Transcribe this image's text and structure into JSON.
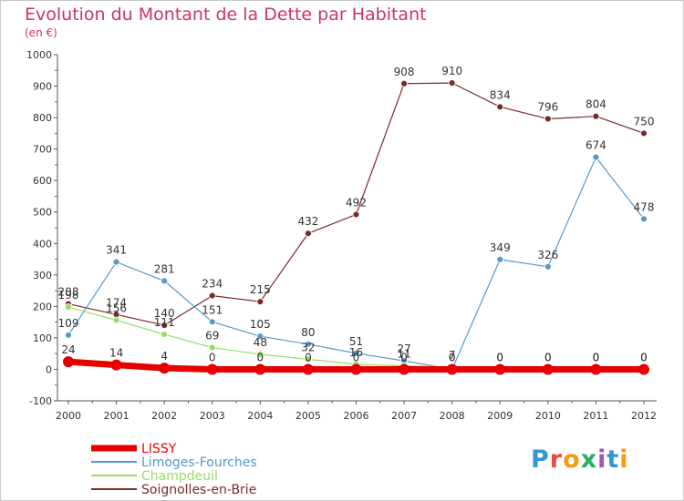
{
  "header": {
    "title": "Evolution du Montant de la Dette par Habitant",
    "subtitle": "(en €)"
  },
  "logo": {
    "text": "Proxiti",
    "colors": [
      "#3399cc",
      "#e84c3d",
      "#f39c12",
      "#27ae60",
      "#9b59b6",
      "#3399cc",
      "#f39c12"
    ]
  },
  "chart_data": {
    "type": "line",
    "title": "Evolution du Montant de la Dette par Habitant",
    "subtitle": "(en €)",
    "x": [
      "2000",
      "2001",
      "2002",
      "2003",
      "2004",
      "2005",
      "2006",
      "2007",
      "2008",
      "2009",
      "2010",
      "2011",
      "2012"
    ],
    "ylim": [
      -100,
      1000
    ],
    "yticks": [
      -100,
      0,
      100,
      200,
      300,
      400,
      500,
      600,
      700,
      800,
      900,
      1000
    ],
    "grid": false,
    "legend": "bottom-left",
    "series": [
      {
        "name": "LISSY",
        "color": "#e60000",
        "values": [
          24,
          14,
          4,
          0,
          0,
          0,
          0,
          0,
          0,
          0,
          0,
          0,
          0
        ],
        "labels": [
          "24",
          "14",
          "4",
          "0",
          "0",
          "0",
          "0",
          "0",
          "0",
          "0",
          "0",
          "0",
          "0"
        ]
      },
      {
        "name": "Limoges-Fourches",
        "color": "#5599cc",
        "values": [
          109,
          341,
          281,
          151,
          105,
          80,
          51,
          27,
          0,
          349,
          326,
          674,
          478
        ],
        "labels": [
          "109",
          "341",
          "281",
          "151",
          "105",
          "80",
          "51",
          "27",
          "0",
          "349",
          "326",
          "674",
          "478"
        ]
      },
      {
        "name": "Champdeuil",
        "color": "#99dd66",
        "values": [
          198,
          156,
          111,
          69,
          48,
          32,
          16,
          11,
          7,
          0,
          0,
          0,
          0
        ],
        "labels": [
          "198",
          "156",
          "111",
          "69",
          "48",
          "32",
          "16",
          "11",
          "7",
          "0",
          "0",
          "0",
          "0"
        ]
      },
      {
        "name": "Soignolles-en-Brie",
        "color": "#7a2a2a",
        "values": [
          208,
          174,
          140,
          234,
          215,
          432,
          492,
          908,
          910,
          834,
          796,
          804,
          750
        ],
        "labels": [
          "208",
          "174",
          "140",
          "234",
          "215",
          "432",
          "492",
          "908",
          "910",
          "834",
          "796",
          "804",
          "750"
        ]
      }
    ]
  }
}
